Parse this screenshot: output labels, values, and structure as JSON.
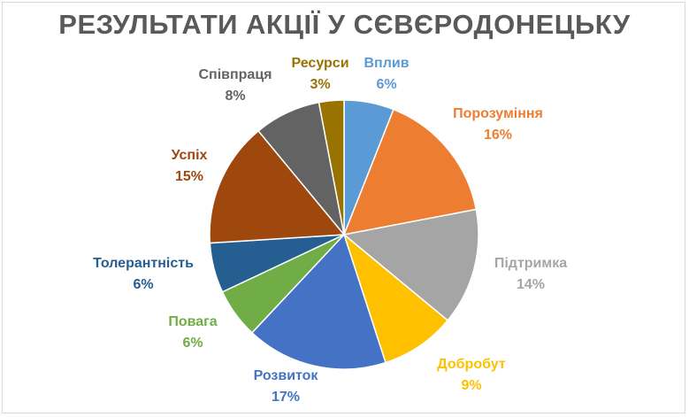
{
  "chart_data": {
    "type": "pie",
    "title": "РЕЗУЛЬТАТИ АКЦІЇ У СЄВЄРОДОНЕЦЬКУ",
    "categories": [
      "Вплив",
      "Порозуміння",
      "Підтримка",
      "Добробут",
      "Розвиток",
      "Повага",
      "Толерантність",
      "Успіх",
      "Співпраця",
      "Ресурси"
    ],
    "values": [
      6,
      16,
      14,
      9,
      17,
      6,
      6,
      15,
      8,
      3
    ],
    "labels": [
      "6%",
      "16%",
      "14%",
      "9%",
      "17%",
      "6%",
      "6%",
      "15%",
      "8%",
      "3%"
    ],
    "colors": [
      "#5b9bd5",
      "#ed7d31",
      "#a5a5a5",
      "#ffc000",
      "#4472c4",
      "#70ad47",
      "#255e91",
      "#9e480e",
      "#636363",
      "#997300"
    ],
    "label_colors": [
      "#5b9bd5",
      "#ed7d31",
      "#a5a5a5",
      "#ffc000",
      "#4472c4",
      "#70ad47",
      "#255e91",
      "#9e480e",
      "#636363",
      "#997300"
    ],
    "start_angle": "top, clockwise",
    "legend": "none"
  }
}
